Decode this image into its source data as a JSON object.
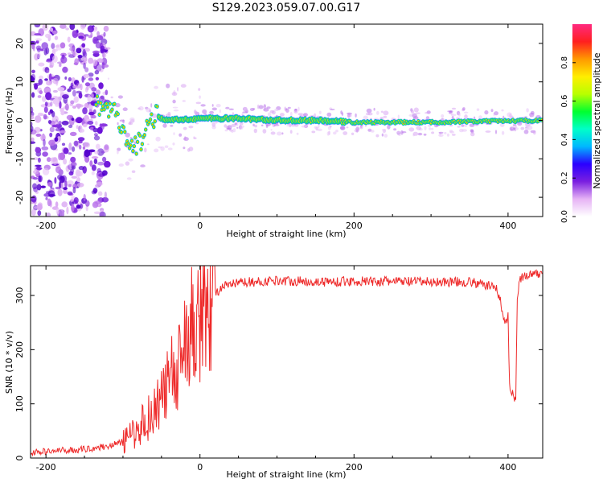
{
  "figure": {
    "title": "S129.2023.059.07.00.G17"
  },
  "chart_data": [
    {
      "type": "heatmap",
      "title": "S129.2023.059.07.00.G17",
      "xlabel": "Height of straight line (km)",
      "ylabel": "Frequency (Hz)",
      "xlim": [
        -220,
        445
      ],
      "ylim": [
        -25,
        25
      ],
      "x_ticks": [
        -200,
        0,
        200,
        400
      ],
      "y_ticks": [
        -20,
        -10,
        0,
        10,
        20
      ],
      "grid": false,
      "colorbar": {
        "label": "Normalized spectral amplitude",
        "range": [
          0.0,
          1.0
        ],
        "ticks": [
          0.0,
          0.2,
          0.4,
          0.6,
          0.8
        ],
        "colormap": [
          "#ffffff",
          "#e6b3f5",
          "#7a1fe0",
          "#2a00ff",
          "#00b8ff",
          "#00ffc8",
          "#00ff30",
          "#b8ff00",
          "#ffee00",
          "#ff9900",
          "#ff1f1f",
          "#ff2a80"
        ]
      },
      "ridge_center_hz": [
        {
          "x": -130,
          "y": 4
        },
        {
          "x": -110,
          "y": 2
        },
        {
          "x": -100,
          "y": -4
        },
        {
          "x": -90,
          "y": -8
        },
        {
          "x": -80,
          "y": -6
        },
        {
          "x": -70,
          "y": -2
        },
        {
          "x": -60,
          "y": 1
        },
        {
          "x": -40,
          "y": 0
        },
        {
          "x": 0,
          "y": 0.5
        },
        {
          "x": 50,
          "y": 0.5
        },
        {
          "x": 100,
          "y": 0
        },
        {
          "x": 150,
          "y": 0
        },
        {
          "x": 200,
          "y": -0.5
        },
        {
          "x": 300,
          "y": -0.5
        },
        {
          "x": 445,
          "y": 0
        }
      ]
    },
    {
      "type": "line",
      "xlabel": "Height of straight line (km)",
      "ylabel": "SNR (10 * v/v)",
      "xlim": [
        -220,
        445
      ],
      "ylim": [
        0,
        355
      ],
      "x_ticks": [
        -200,
        0,
        200,
        400
      ],
      "y_ticks": [
        0,
        100,
        200,
        300
      ],
      "grid": false,
      "series": [
        {
          "color": "#ee2a2a",
          "x": [
            -220,
            -200,
            -180,
            -160,
            -140,
            -120,
            -110,
            -100,
            -90,
            -80,
            -70,
            -60,
            -50,
            -40,
            -30,
            -20,
            -10,
            0,
            10,
            20,
            30,
            40,
            60,
            80,
            100,
            150,
            200,
            250,
            300,
            350,
            385,
            390,
            395,
            400,
            402,
            405,
            410,
            412,
            415,
            420,
            430,
            445
          ],
          "y": [
            10,
            12,
            14,
            15,
            18,
            22,
            26,
            30,
            40,
            55,
            70,
            90,
            110,
            140,
            170,
            200,
            230,
            260,
            290,
            305,
            315,
            320,
            325,
            325,
            328,
            325,
            326,
            326,
            325,
            325,
            315,
            290,
            250,
            260,
            130,
            120,
            110,
            300,
            330,
            335,
            338,
            340
          ]
        }
      ]
    }
  ]
}
